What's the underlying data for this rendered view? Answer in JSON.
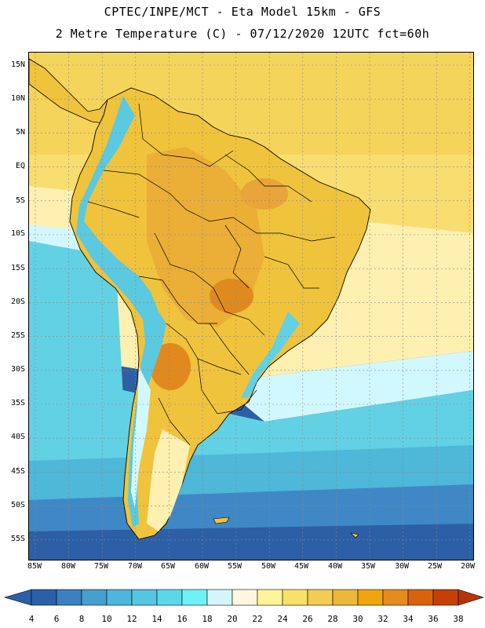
{
  "header": {
    "title_line1": "CPTEC/INPE/MCT -  Eta Model 15km - GFS",
    "title_line2": "2 Metre Temperature (C) - 07/12/2020 12UTC fct=60h"
  },
  "map": {
    "lat_labels": [
      "15N",
      "10N",
      "5N",
      "EQ",
      "5S",
      "10S",
      "15S",
      "20S",
      "25S",
      "30S",
      "35S",
      "40S",
      "45S",
      "50S",
      "55S"
    ],
    "lon_labels": [
      "85W",
      "80W",
      "75W",
      "70W",
      "65W",
      "60W",
      "55W",
      "50W",
      "45W",
      "40W",
      "35W",
      "30W",
      "25W",
      "20W"
    ],
    "colors": {
      "ocean_south_deep": "#2d5fa5",
      "ocean_south": "#3f88c5",
      "ocean_mid": "#4fb7d8",
      "ocean_cool": "#62d1e3",
      "ocean_light": "#d2f8ff",
      "ocean_warm": "#fdf0b0",
      "ocean_tropic": "#f5d45c",
      "land_warm": "#f0c33c",
      "land_hot": "#e08a1e",
      "andes": "#5bc9df"
    }
  },
  "colorbar": {
    "labels": [
      "4",
      "6",
      "8",
      "10",
      "12",
      "14",
      "16",
      "18",
      "20",
      "22",
      "24",
      "26",
      "28",
      "30",
      "32",
      "34",
      "36",
      "38"
    ],
    "colors": [
      "#2b60a9",
      "#3a80bf",
      "#45a0cf",
      "#4fb6db",
      "#55c6e2",
      "#5ad8e8",
      "#6ef2f6",
      "#d4f6fb",
      "#fdf6e0",
      "#fef59a",
      "#f9e06a",
      "#f2cc54",
      "#ecb83c",
      "#eea60c",
      "#e78a1f",
      "#d9620f",
      "#c44006"
    ],
    "left_arrow_color": "#2b60a9",
    "right_arrow_color": "#b5360a"
  }
}
